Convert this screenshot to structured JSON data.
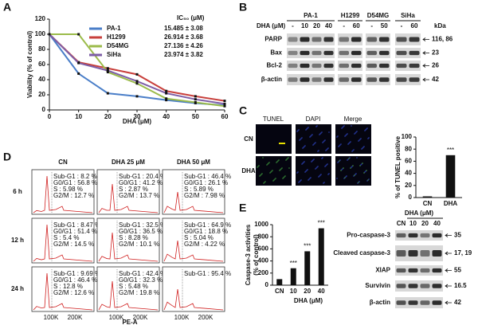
{
  "panel_labels": [
    "A",
    "B",
    "C",
    "D",
    "E"
  ],
  "chart_data": [
    {
      "type": "line",
      "xlabel": "DHA (μM)",
      "ylabel": "Viability (% of control)",
      "x": [
        0,
        10,
        20,
        30,
        40,
        50,
        60
      ],
      "xlim": [
        0,
        60
      ],
      "xticks": [
        0,
        10,
        20,
        30,
        40,
        50,
        60
      ],
      "ylim": [
        0,
        120
      ],
      "yticks": [
        0,
        20,
        40,
        60,
        80,
        100,
        120
      ],
      "ic50_header": "IC₅₀ (μM)",
      "ic50": [
        "15.485 ± 3.08",
        "26.914 ± 3.68",
        "27.136 ± 4.26",
        "23.974 ± 3.82"
      ],
      "series": [
        {
          "name": "PA-1",
          "color": "#4a7ec8",
          "values": [
            100,
            48,
            22,
            18,
            13,
            9,
            6
          ]
        },
        {
          "name": "H1299",
          "color": "#c8403c",
          "values": [
            100,
            63,
            55,
            47,
            25,
            18,
            12
          ]
        },
        {
          "name": "D54MG",
          "color": "#9bbb4a",
          "values": [
            100,
            100,
            50,
            35,
            15,
            10,
            5
          ]
        },
        {
          "name": "SiHa",
          "color": "#7d5ea6",
          "values": [
            100,
            62,
            52,
            38,
            22,
            14,
            8
          ]
        }
      ]
    },
    {
      "type": "bar",
      "ylabel": "% of TUNEL positive",
      "categories": [
        "CN",
        "DHA"
      ],
      "values": [
        2,
        70
      ],
      "color": "#111111",
      "ylim": [
        0,
        100
      ],
      "yticks": [
        0,
        20,
        40,
        60,
        80,
        100
      ],
      "annotations": [
        {
          "category": "DHA",
          "text": "***"
        }
      ]
    },
    {
      "type": "bar",
      "ylabel": [
        "Caspase-3 activities",
        "(% of control)"
      ],
      "xlabel": "DHA (μM)",
      "categories": [
        "CN",
        "10",
        "20",
        "40"
      ],
      "values": [
        100,
        280,
        560,
        940
      ],
      "color": "#111111",
      "ylim": [
        0,
        1000
      ],
      "yticks": [
        0,
        200,
        400,
        600,
        800,
        1000
      ],
      "annotations": [
        {
          "category": "10",
          "text": "***"
        },
        {
          "category": "20",
          "text": "***"
        },
        {
          "category": "40",
          "text": "***"
        }
      ]
    }
  ],
  "blot_b": {
    "header": "DHA (μM)",
    "kda_label": "kDa",
    "groups": [
      {
        "name": "PA-1",
        "lanes": [
          "-",
          "10",
          "20",
          "40"
        ]
      },
      {
        "name": "H1299",
        "lanes": [
          "-",
          "60"
        ]
      },
      {
        "name": "D54MG",
        "lanes": [
          "-",
          "50"
        ]
      },
      {
        "name": "SiHa",
        "lanes": [
          "-",
          "60"
        ]
      }
    ],
    "rows": [
      {
        "name": "PARP",
        "kda": "116, 86"
      },
      {
        "name": "Bax",
        "kda": "23"
      },
      {
        "name": "Bcl-2",
        "kda": "26"
      },
      {
        "name": "β-actin",
        "kda": "42"
      }
    ]
  },
  "tunel": {
    "columns": [
      "TUNEL",
      "DAPI",
      "Merge"
    ],
    "rows": [
      "CN",
      "DHA"
    ]
  },
  "flow": {
    "columns": [
      "CN",
      "DHA 25 μM",
      "DHA 50 μM"
    ],
    "rows": [
      "6 h",
      "12 h",
      "24 h"
    ],
    "xticks": [
      "100K",
      "200K"
    ],
    "xlabel": "PE-A",
    "cells": [
      [
        [
          "Sub-G1 : 8.2 %",
          "G0/G1 : 56.8 %",
          "S : 5.98 %",
          "G2/M : 12.7 %"
        ],
        [
          "Sub-G1 : 20.4 %",
          "G0/G1 : 41.2 %",
          "S : 2.87 %",
          "G2/M : 13.7 %"
        ],
        [
          "Sub-G1 : 46.4 %",
          "G0/G1 : 26.1 %",
          "S : 5.89 %",
          "G2/M : 7.98 %"
        ]
      ],
      [
        [
          "Sub-G1 : 8.47 %",
          "G0/G1 : 51.4 %",
          "S : 5.4 %",
          "G2/M : 14.5 %"
        ],
        [
          "Sub-G1 : 32.5 %",
          "G0/G1 : 36.5 %",
          "S : 8.28 %",
          "G2/M : 10.1 %"
        ],
        [
          "Sub-G1 : 64.9 %",
          "G0/G1 : 18.8 %",
          "S : 5.04 %",
          "G2/M : 4.22 %"
        ]
      ],
      [
        [
          "Sub-G1 : 9.69 %",
          "G0/G1 : 46.4 %",
          "S : 12.8 %",
          "G2/M : 12.6 %"
        ],
        [
          "Sub-G1 : 42.4 %",
          "G0/G1 : 32.3 %",
          "S : 5.48 %",
          "G2/M : 19.8 %"
        ],
        [
          "Sub-G1 : 95.4 %"
        ]
      ]
    ]
  },
  "blot_e": {
    "header": "DHA (μM)",
    "lanes": [
      "CN",
      "10",
      "20",
      "40"
    ],
    "rows": [
      {
        "name": "Pro-caspase-3",
        "kda": "35"
      },
      {
        "name": "Cleaved caspase-3",
        "kda": "17, 19"
      },
      {
        "name": "XIAP",
        "kda": "55"
      },
      {
        "name": "Survivin",
        "kda": "16.5"
      },
      {
        "name": "β-actin",
        "kda": "42"
      }
    ]
  }
}
